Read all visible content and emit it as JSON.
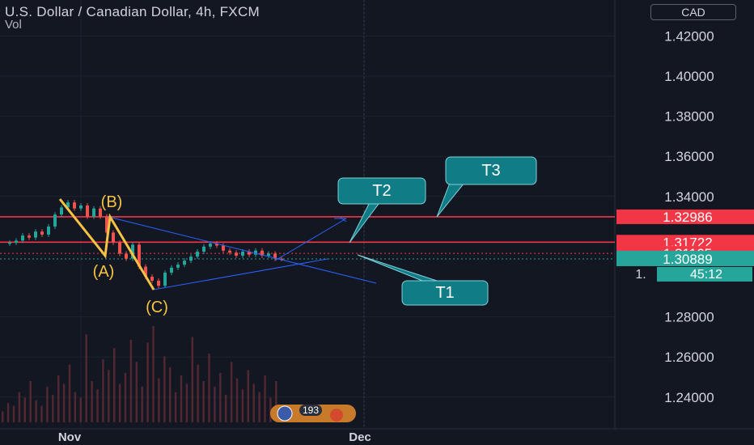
{
  "header": {
    "symbol_title": "U.S. Dollar / Canadian Dollar, 4h, FXCM",
    "volume_label": "Vol",
    "currency_button": "CAD"
  },
  "colors": {
    "background": "#131722",
    "grid": "#1e222d",
    "axis_text": "#d1d4dc",
    "level_line": "#f23645",
    "pattern": "#f6c343",
    "projection": "#2962ff",
    "callout_fill": "#0f7c86",
    "price_badge": "#26a69a",
    "volume_bar": "#5c2a35"
  },
  "chart_data": {
    "type": "candlestick",
    "instrument": "USDCAD",
    "timeframe": "4h",
    "y_axis": {
      "ticks": [
        "1.42000",
        "1.40000",
        "1.38000",
        "1.36000",
        "1.34000",
        "1.28000",
        "1.26000",
        "1.24000"
      ],
      "ylim": [
        1.22,
        1.43
      ]
    },
    "x_axis": {
      "labels": [
        "Nov",
        "Dec"
      ]
    },
    "levels": [
      {
        "price": 1.32986,
        "label": "1.32986"
      },
      {
        "price": 1.31722,
        "label": "1.31722"
      },
      {
        "price": 1.31165,
        "label": "1.31165"
      }
    ],
    "last_price": {
      "label": "1.30889",
      "countdown": "45:12",
      "extra_tick": "1."
    },
    "price_path": [
      [
        0,
        1.3165
      ],
      [
        4,
        1.317
      ],
      [
        8,
        1.318
      ],
      [
        12,
        1.3205
      ],
      [
        16,
        1.3195
      ],
      [
        20,
        1.3225
      ],
      [
        24,
        1.321
      ],
      [
        28,
        1.325
      ],
      [
        32,
        1.331
      ],
      [
        36,
        1.3345
      ],
      [
        40,
        1.337
      ],
      [
        44,
        1.334
      ],
      [
        48,
        1.3355
      ],
      [
        52,
        1.33
      ],
      [
        56,
        1.334
      ],
      [
        60,
        1.33
      ],
      [
        64,
        1.322
      ],
      [
        68,
        1.317
      ],
      [
        72,
        1.3115
      ],
      [
        76,
        1.309
      ],
      [
        80,
        1.316
      ],
      [
        84,
        1.305
      ],
      [
        88,
        1.3
      ],
      [
        92,
        1.298
      ],
      [
        96,
        1.2955
      ],
      [
        100,
        1.302
      ],
      [
        104,
        1.3045
      ],
      [
        108,
        1.306
      ],
      [
        112,
        1.308
      ],
      [
        116,
        1.31
      ],
      [
        120,
        1.3125
      ],
      [
        124,
        1.315
      ],
      [
        128,
        1.3165
      ],
      [
        132,
        1.3155
      ],
      [
        136,
        1.313
      ],
      [
        140,
        1.312
      ],
      [
        144,
        1.3105
      ],
      [
        148,
        1.3125
      ],
      [
        152,
        1.311
      ],
      [
        156,
        1.313
      ],
      [
        160,
        1.3105
      ],
      [
        164,
        1.3115
      ],
      [
        168,
        1.309
      ],
      [
        172,
        1.3089
      ]
    ],
    "volume": [
      8,
      14,
      12,
      22,
      18,
      30,
      16,
      12,
      26,
      20,
      34,
      28,
      42,
      22,
      18,
      64,
      30,
      24,
      46,
      38,
      54,
      28,
      36,
      60,
      44,
      26,
      58,
      70,
      32,
      48,
      40,
      22,
      34,
      28,
      62,
      42,
      30,
      50,
      26,
      36,
      20,
      44,
      32,
      24,
      38,
      28,
      22,
      34,
      18,
      30
    ],
    "wave_labels": [
      "(B)",
      "(A)",
      "(C)"
    ],
    "targets": [
      "T1",
      "T2",
      "T3"
    ],
    "badge_text": "193"
  }
}
